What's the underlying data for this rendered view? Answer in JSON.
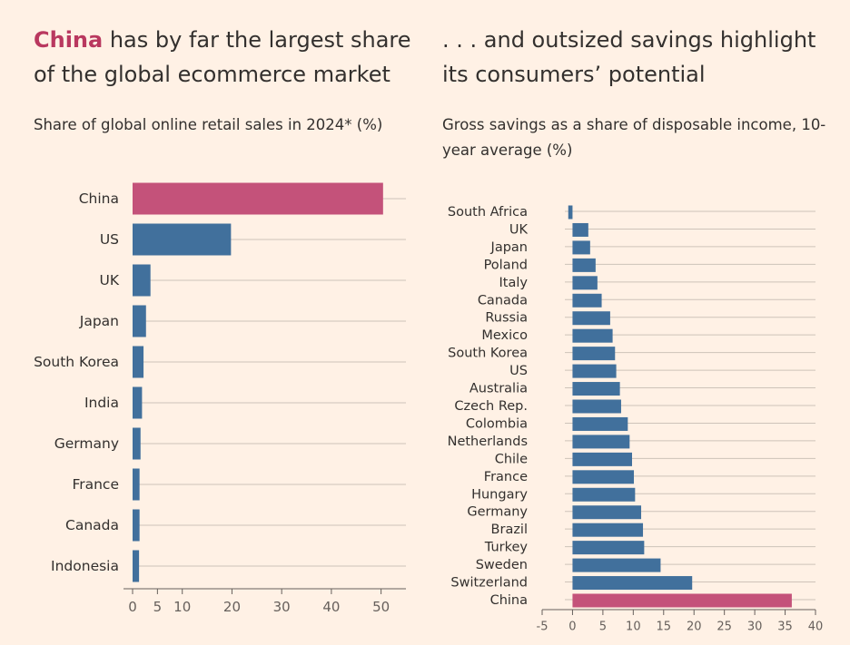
{
  "chart_data": [
    {
      "type": "bar",
      "orientation": "horizontal",
      "title_highlight": "China",
      "title_rest": " has by far the largest share of the global ecommerce market",
      "subtitle": "Share of global online retail sales in 2024* (%)",
      "categories": [
        "China",
        "US",
        "UK",
        "Japan",
        "South Korea",
        "India",
        "Germany",
        "France",
        "Canada",
        "Indonesia"
      ],
      "values": [
        50.4,
        19.8,
        3.6,
        2.7,
        2.2,
        1.9,
        1.6,
        1.4,
        1.4,
        1.3
      ],
      "highlight_category": "China",
      "xlim": [
        0,
        55
      ],
      "xticks": [
        0,
        5,
        10,
        20,
        30,
        40,
        50
      ],
      "grid": true,
      "colors": {
        "bar": "#41709c",
        "highlight": "#c4527a",
        "grid": "#cdc3b9",
        "axis": "#66605c"
      }
    },
    {
      "type": "bar",
      "orientation": "horizontal",
      "title": ". . . and outsized savings highlight its consumers’ potential",
      "subtitle": "Gross savings as a share of disposable income, 10-year average (%)",
      "categories": [
        "South Africa",
        "UK",
        "Japan",
        "Poland",
        "Italy",
        "Canada",
        "Russia",
        "Mexico",
        "South Korea",
        "US",
        "Australia",
        "Czech Rep.",
        "Colombia",
        "Netherlands",
        "Chile",
        "France",
        "Hungary",
        "Germany",
        "Brazil",
        "Turkey",
        "Sweden",
        "Switzerland",
        "China"
      ],
      "values": [
        -0.7,
        2.6,
        2.9,
        3.8,
        4.1,
        4.8,
        6.2,
        6.6,
        7.0,
        7.2,
        7.8,
        8.0,
        9.1,
        9.4,
        9.8,
        10.1,
        10.3,
        11.3,
        11.6,
        11.8,
        14.5,
        19.7,
        36.1
      ],
      "highlight_category": "China",
      "xlim": [
        -5,
        40
      ],
      "xticks": [
        -5,
        0,
        5,
        10,
        15,
        20,
        25,
        30,
        35,
        40
      ],
      "grid": true,
      "colors": {
        "bar": "#41709c",
        "highlight": "#c4527a",
        "grid": "#cdc3b9",
        "axis": "#66605c"
      }
    }
  ]
}
